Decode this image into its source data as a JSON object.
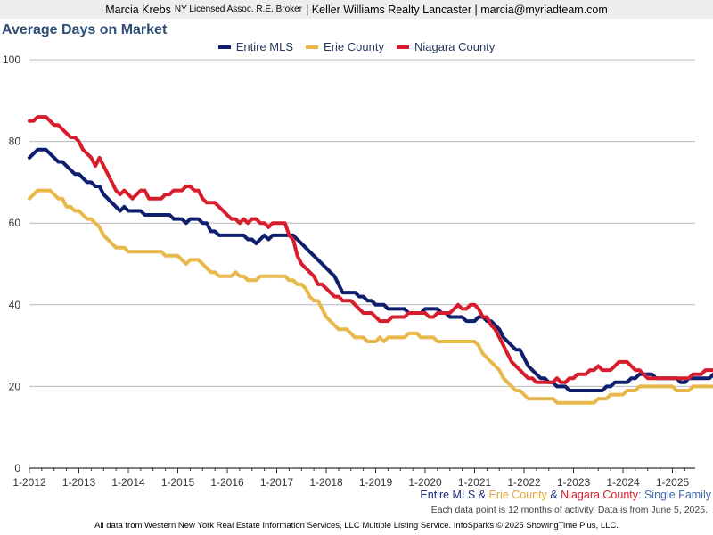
{
  "header": {
    "name": "Marcia Krebs",
    "license": "NY Licensed Assoc. R.E. Broker",
    "rest": "| Keller Williams Realty Lancaster | marcia@myriadteam.com"
  },
  "caption": {
    "s1": "Entire MLS",
    "amp1": " & ",
    "s2": "Erie County",
    "amp2": " & ",
    "s3": "Niagara County",
    "type": ": Single Family",
    "note": "Each data point is 12 months of activity. Data is from June 5, 2025."
  },
  "footer": "All data from Western New York Real Estate Information Services, LLC Multiple Listing Service. InfoSparks © 2025 ShowingTime Plus, LLC.",
  "chart_data": {
    "type": "line",
    "title": "Average Days on Market",
    "xlabel": "",
    "ylabel": "",
    "ylim": [
      0,
      100
    ],
    "yticks": [
      0,
      20,
      40,
      60,
      80,
      100
    ],
    "x_start": "1-2012",
    "x_end": "5-2025",
    "xticks": [
      "1-2012",
      "1-2013",
      "1-2014",
      "1-2015",
      "1-2016",
      "1-2017",
      "1-2018",
      "1-2019",
      "1-2020",
      "1-2021",
      "1-2022",
      "1-2023",
      "1-2024",
      "1-2025"
    ],
    "grid": "horizontal",
    "legend": "top-center",
    "series": [
      {
        "name": "Entire MLS",
        "color": "#0f1f6e",
        "values": [
          76,
          77,
          78,
          78,
          78,
          77,
          76,
          75,
          75,
          74,
          73,
          72,
          72,
          71,
          70,
          70,
          69,
          69,
          67,
          66,
          65,
          64,
          63,
          64,
          63,
          63,
          63,
          63,
          62,
          62,
          62,
          62,
          62,
          62,
          62,
          61,
          61,
          61,
          60,
          61,
          61,
          61,
          60,
          60,
          58,
          58,
          57,
          57,
          57,
          57,
          57,
          57,
          57,
          56,
          56,
          55,
          56,
          57,
          56,
          57,
          57,
          57,
          57,
          57,
          57,
          56,
          55,
          54,
          53,
          52,
          51,
          50,
          49,
          48,
          47,
          45,
          43,
          43,
          43,
          43,
          42,
          42,
          41,
          41,
          40,
          40,
          40,
          39,
          39,
          39,
          39,
          39,
          38,
          38,
          38,
          38,
          39,
          39,
          39,
          39,
          38,
          38,
          37,
          37,
          37,
          37,
          36,
          36,
          36,
          37,
          37,
          36,
          36,
          35,
          34,
          32,
          31,
          30,
          29,
          29,
          27,
          25,
          24,
          23,
          22,
          22,
          21,
          21,
          20,
          20,
          20,
          19,
          19,
          19,
          19,
          19,
          19,
          19,
          19,
          19,
          20,
          20,
          21,
          21,
          21,
          21,
          22,
          22,
          23,
          23,
          23,
          23,
          22,
          22,
          22,
          22,
          22,
          22,
          21,
          21,
          22,
          22,
          22,
          22,
          22,
          22,
          23,
          23,
          24
        ]
      },
      {
        "name": "Erie County",
        "color": "#e8b84b",
        "values": [
          66,
          67,
          68,
          68,
          68,
          68,
          67,
          66,
          66,
          64,
          64,
          63,
          63,
          62,
          61,
          61,
          60,
          59,
          57,
          56,
          55,
          54,
          54,
          54,
          53,
          53,
          53,
          53,
          53,
          53,
          53,
          53,
          53,
          52,
          52,
          52,
          52,
          51,
          50,
          51,
          51,
          51,
          50,
          49,
          48,
          48,
          47,
          47,
          47,
          47,
          48,
          47,
          47,
          46,
          46,
          46,
          47,
          47,
          47,
          47,
          47,
          47,
          47,
          46,
          46,
          45,
          45,
          44,
          42,
          41,
          41,
          39,
          37,
          36,
          35,
          34,
          34,
          34,
          33,
          32,
          32,
          32,
          31,
          31,
          31,
          32,
          31,
          32,
          32,
          32,
          32,
          32,
          33,
          33,
          33,
          32,
          32,
          32,
          32,
          31,
          31,
          31,
          31,
          31,
          31,
          31,
          31,
          31,
          31,
          30,
          28,
          27,
          26,
          25,
          24,
          22,
          21,
          20,
          19,
          19,
          18,
          17,
          17,
          17,
          17,
          17,
          17,
          17,
          16,
          16,
          16,
          16,
          16,
          16,
          16,
          16,
          16,
          16,
          17,
          17,
          17,
          18,
          18,
          18,
          18,
          19,
          19,
          19,
          20,
          20,
          20,
          20,
          20,
          20,
          20,
          20,
          20,
          19,
          19,
          19,
          19,
          20,
          20,
          20,
          20,
          20,
          20,
          20,
          21,
          21
        ]
      },
      {
        "name": "Niagara County",
        "color": "#d71c2c",
        "values": [
          85,
          85,
          86,
          86,
          86,
          85,
          84,
          84,
          83,
          82,
          81,
          81,
          80,
          78,
          77,
          76,
          74,
          76,
          74,
          72,
          70,
          68,
          67,
          68,
          67,
          66,
          67,
          68,
          68,
          66,
          66,
          66,
          66,
          67,
          67,
          68,
          68,
          68,
          69,
          69,
          68,
          68,
          66,
          65,
          65,
          65,
          64,
          63,
          62,
          61,
          61,
          60,
          61,
          60,
          61,
          61,
          60,
          60,
          59,
          60,
          60,
          60,
          60,
          57,
          56,
          52,
          50,
          49,
          48,
          47,
          45,
          45,
          44,
          43,
          42,
          42,
          41,
          41,
          41,
          40,
          39,
          38,
          38,
          38,
          37,
          36,
          36,
          36,
          37,
          37,
          37,
          37,
          38,
          38,
          38,
          38,
          38,
          37,
          37,
          38,
          38,
          38,
          38,
          39,
          40,
          39,
          39,
          40,
          40,
          39,
          37,
          37,
          35,
          34,
          32,
          30,
          28,
          26,
          25,
          24,
          23,
          22,
          22,
          21,
          21,
          21,
          21,
          21,
          22,
          21,
          21,
          22,
          22,
          23,
          23,
          23,
          24,
          24,
          25,
          24,
          24,
          24,
          25,
          26,
          26,
          26,
          25,
          24,
          24,
          23,
          22,
          22,
          22,
          22,
          22,
          22,
          22,
          22,
          22,
          22,
          22,
          23,
          23,
          23,
          24,
          24,
          24,
          24
        ]
      }
    ]
  }
}
